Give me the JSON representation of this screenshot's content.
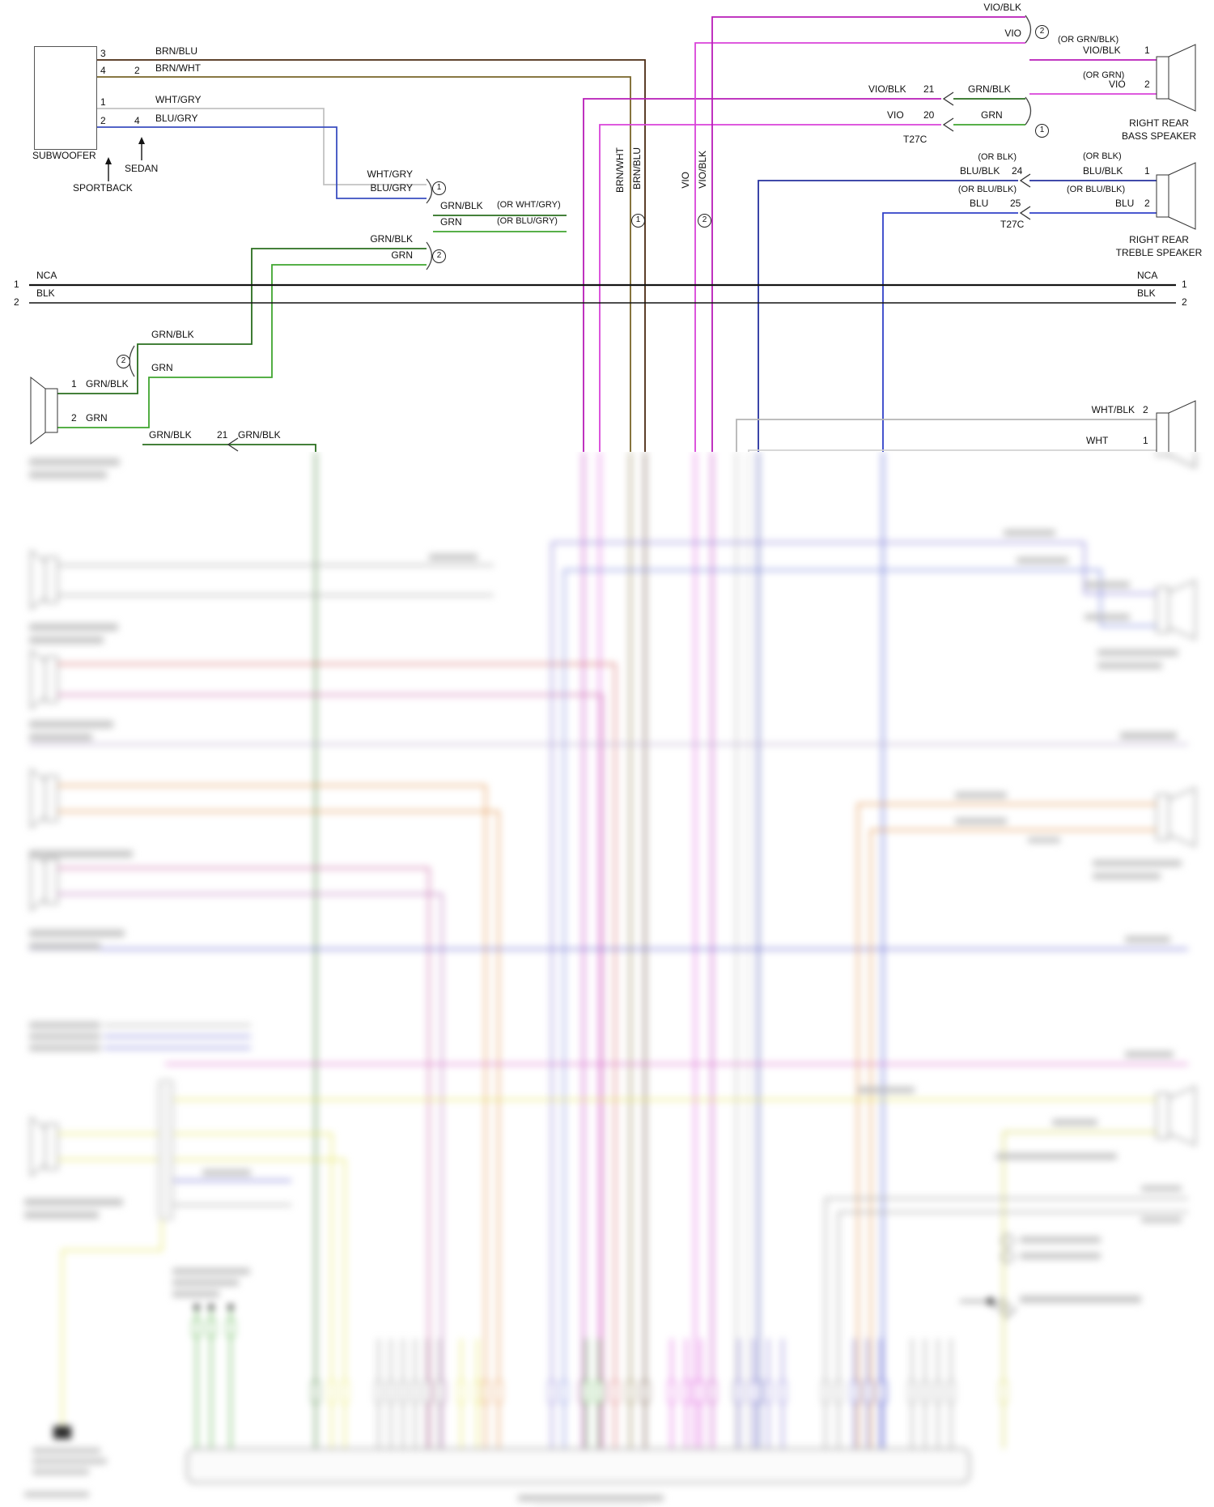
{
  "colors": {
    "blk": "#141414",
    "line_grey": "#444444",
    "brn_blu": "#4a2a12",
    "brn_wht": "#786428",
    "wht_gry": "#c2c2c2",
    "blu_gry": "#3a4ec0",
    "grn": "#3fa52f",
    "grn_blk": "#2a6e1e",
    "vio": "#d943d9",
    "vio_blk": "#b81cb8",
    "blu": "#3141c8",
    "blu_blk": "#25309e",
    "wht": "#d2d2d2",
    "wht_blk": "#b5b5b5",
    "grey": "#9a9a9a",
    "red": "#d05555",
    "pink": "#c5569a",
    "pink2": "#d55cc5",
    "plum": "#b468b4",
    "orange": "#e08838",
    "yellow": "#e3e34f",
    "dyellow": "#cfcf45",
    "violet": "#7b6fd0",
    "blue2": "#5a5acc",
    "blue3": "#6a78d8",
    "lav": "#b0a0c8",
    "bar": "#b3b3b3",
    "ink": "#333333"
  },
  "subwoofer": {
    "title": "SUBWOOFER",
    "pin3_n": "3",
    "pin3_wire": "BRN/BLU",
    "pin4_n": "4",
    "pin4_alt": "2",
    "pin4_wire": "BRN/WHT",
    "pin1_n": "1",
    "pin1_wire": "WHT/GRY",
    "pin2_n": "2",
    "pin2_alt": "4",
    "pin2_wire": "BLU/GRY",
    "sportback": "SPORTBACK",
    "sedan": "SEDAN"
  },
  "splice": {
    "wht_gry": "WHT/GRY",
    "blu_gry": "BLU/GRY",
    "mark1": "1",
    "grn_blk_or": "GRN/BLK",
    "or_wht_gry": "(OR WHT/GRY)",
    "grn_or": "GRN",
    "or_blu_gry": "(OR BLU/GRY)",
    "grn_blk2": "GRN/BLK",
    "grn2": "GRN",
    "mark2": "2"
  },
  "bus": {
    "nca": "NCA",
    "blk": "BLK",
    "one": "1",
    "two": "2"
  },
  "door": {
    "mark2": "2",
    "grn_blk": "GRN/BLK",
    "grn": "GRN",
    "pin1_n": "1",
    "pin1_wire": "GRN/BLK",
    "pin2_n": "2",
    "pin2_wire": "GRN",
    "row_wire1": "GRN/BLK",
    "row_pin": "21",
    "row_wire2": "GRN/BLK"
  },
  "risers": {
    "brn_wht": "BRN/WHT",
    "brn_blu": "BRN/BLU",
    "vio": "VIO",
    "vio_blk": "VIO/BLK",
    "mark1": "1",
    "mark2": "2"
  },
  "bass": {
    "vio_blk": "VIO/BLK",
    "vio": "VIO",
    "mark2": "2",
    "or_grn_blk": "(OR GRN/BLK)",
    "pin1_wire": "VIO/BLK",
    "pin1_n": "1",
    "or_grn": "(OR GRN)",
    "pin2_wire": "VIO",
    "pin2_n": "2",
    "name1": "RIGHT REAR",
    "name2": "BASS SPEAKER",
    "c_vio_blk": "VIO/BLK",
    "c21": "21",
    "c_grn_blk": "GRN/BLK",
    "c_vio": "VIO",
    "c20": "20",
    "c_grn": "GRN",
    "conn": "T27C",
    "mark1": "1"
  },
  "treble": {
    "or_blk_l": "(OR BLK)",
    "blu_blk_l": "BLU/BLK",
    "p24": "24",
    "or_blu_blk_l": "(OR BLU/BLK)",
    "blu_l": "BLU",
    "p25": "25",
    "conn": "T27C",
    "or_blk_r": "(OR BLK)",
    "blu_blk_r": "BLU/BLK",
    "pin1_n": "1",
    "or_blu_blk_r": "(OR BLU/BLK)",
    "blu_r": "BLU",
    "pin2_n": "2",
    "name1": "RIGHT REAR",
    "name2": "TREBLE SPEAKER"
  },
  "midright": {
    "wht_blk": "WHT/BLK",
    "pin2_n": "2",
    "wht": "WHT",
    "pin1_n": "1"
  }
}
